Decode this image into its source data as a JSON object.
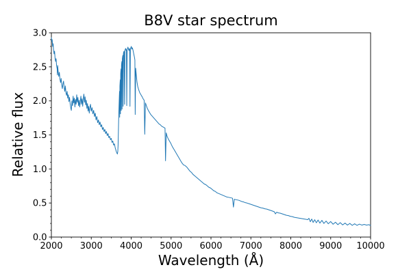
{
  "figure": {
    "title": "B8V star spectrum",
    "background": "#ffffff"
  },
  "chart_data": {
    "type": "line",
    "title": "B8V star spectrum",
    "xlabel": "Wavelength (Å)",
    "ylabel": "Relative flux",
    "xlim": [
      2000,
      10000
    ],
    "ylim": [
      0.0,
      3.0
    ],
    "x_ticks": [
      2000,
      3000,
      4000,
      5000,
      6000,
      7000,
      8000,
      9000,
      10000
    ],
    "y_ticks": [
      0.0,
      0.5,
      1.0,
      1.5,
      2.0,
      2.5,
      3.0
    ],
    "x_minor_tick_step": 250,
    "y_minor_tick_step": 0.1,
    "grid": false,
    "legend": "none",
    "line_color": "#1f77b4",
    "text_color": "#000000",
    "spine_color": "#1a1a1a",
    "series": [
      {
        "name": "B8V star spectrum",
        "points": [
          [
            2000,
            2.93
          ],
          [
            2010,
            2.87
          ],
          [
            2020,
            2.9
          ],
          [
            2032,
            2.8
          ],
          [
            2044,
            2.84
          ],
          [
            2056,
            2.74
          ],
          [
            2068,
            2.69
          ],
          [
            2080,
            2.73
          ],
          [
            2092,
            2.63
          ],
          [
            2105,
            2.58
          ],
          [
            2118,
            2.62
          ],
          [
            2130,
            2.52
          ],
          [
            2145,
            2.47
          ],
          [
            2152,
            2.38
          ],
          [
            2158,
            2.52
          ],
          [
            2170,
            2.43
          ],
          [
            2185,
            2.36
          ],
          [
            2200,
            2.42
          ],
          [
            2215,
            2.32
          ],
          [
            2230,
            2.27
          ],
          [
            2245,
            2.33
          ],
          [
            2260,
            2.23
          ],
          [
            2275,
            2.18
          ],
          [
            2290,
            2.25
          ],
          [
            2305,
            2.29
          ],
          [
            2320,
            2.2
          ],
          [
            2335,
            2.14
          ],
          [
            2350,
            2.22
          ],
          [
            2365,
            2.12
          ],
          [
            2380,
            2.08
          ],
          [
            2395,
            2.14
          ],
          [
            2410,
            2.04
          ],
          [
            2425,
            2.09
          ],
          [
            2440,
            1.99
          ],
          [
            2455,
            2.05
          ],
          [
            2470,
            1.96
          ],
          [
            2485,
            1.9
          ],
          [
            2500,
            1.86
          ],
          [
            2515,
            2.0
          ],
          [
            2530,
            1.93
          ],
          [
            2545,
            2.07
          ],
          [
            2560,
            1.97
          ],
          [
            2575,
            2.04
          ],
          [
            2590,
            1.91
          ],
          [
            2605,
            2.02
          ],
          [
            2620,
            1.95
          ],
          [
            2635,
            2.09
          ],
          [
            2650,
            1.98
          ],
          [
            2665,
            2.05
          ],
          [
            2680,
            1.93
          ],
          [
            2695,
            2.01
          ],
          [
            2710,
            1.91
          ],
          [
            2725,
            1.99
          ],
          [
            2740,
            2.07
          ],
          [
            2755,
            1.95
          ],
          [
            2770,
            2.03
          ],
          [
            2785,
            1.92
          ],
          [
            2800,
            2.04
          ],
          [
            2815,
            2.1
          ],
          [
            2830,
            1.98
          ],
          [
            2845,
            2.06
          ],
          [
            2860,
            1.94
          ],
          [
            2875,
            2.01
          ],
          [
            2890,
            1.89
          ],
          [
            2905,
            1.96
          ],
          [
            2920,
            1.85
          ],
          [
            2935,
            1.92
          ],
          [
            2950,
            1.82
          ],
          [
            2965,
            1.9
          ],
          [
            2980,
            1.95
          ],
          [
            3000,
            1.85
          ],
          [
            3020,
            1.9
          ],
          [
            3040,
            1.81
          ],
          [
            3060,
            1.86
          ],
          [
            3080,
            1.77
          ],
          [
            3100,
            1.82
          ],
          [
            3120,
            1.72
          ],
          [
            3140,
            1.77
          ],
          [
            3160,
            1.68
          ],
          [
            3180,
            1.72
          ],
          [
            3200,
            1.65
          ],
          [
            3220,
            1.69
          ],
          [
            3240,
            1.62
          ],
          [
            3260,
            1.65
          ],
          [
            3280,
            1.58
          ],
          [
            3300,
            1.61
          ],
          [
            3320,
            1.55
          ],
          [
            3340,
            1.58
          ],
          [
            3360,
            1.52
          ],
          [
            3380,
            1.55
          ],
          [
            3400,
            1.49
          ],
          [
            3420,
            1.52
          ],
          [
            3440,
            1.46
          ],
          [
            3460,
            1.48
          ],
          [
            3480,
            1.43
          ],
          [
            3500,
            1.45
          ],
          [
            3520,
            1.39
          ],
          [
            3540,
            1.41
          ],
          [
            3560,
            1.35
          ],
          [
            3580,
            1.37
          ],
          [
            3600,
            1.31
          ],
          [
            3615,
            1.28
          ],
          [
            3630,
            1.25
          ],
          [
            3645,
            1.23
          ],
          [
            3655,
            1.22
          ],
          [
            3665,
            1.26
          ],
          [
            3672,
            1.35
          ],
          [
            3680,
            1.56
          ],
          [
            3688,
            1.77
          ],
          [
            3696,
            1.93
          ],
          [
            3703,
            2.06
          ],
          [
            3708,
            2.14
          ],
          [
            3712,
            1.76
          ],
          [
            3717,
            2.22
          ],
          [
            3723,
            2.28
          ],
          [
            3727,
            2.31
          ],
          [
            3731,
            1.81
          ],
          [
            3737,
            2.4
          ],
          [
            3743,
            2.45
          ],
          [
            3747,
            2.47
          ],
          [
            3751,
            1.86
          ],
          [
            3757,
            2.52
          ],
          [
            3763,
            2.56
          ],
          [
            3768,
            2.58
          ],
          [
            3772,
            1.88
          ],
          [
            3779,
            2.62
          ],
          [
            3786,
            2.65
          ],
          [
            3793,
            2.67
          ],
          [
            3798,
            1.92
          ],
          [
            3806,
            2.7
          ],
          [
            3814,
            2.72
          ],
          [
            3823,
            2.73
          ],
          [
            3835,
            1.95
          ],
          [
            3844,
            2.74
          ],
          [
            3853,
            2.76
          ],
          [
            3863,
            2.77
          ],
          [
            3873,
            2.74
          ],
          [
            3881,
            2.75
          ],
          [
            3889,
            1.93
          ],
          [
            3899,
            2.76
          ],
          [
            3909,
            2.77
          ],
          [
            3919,
            2.79
          ],
          [
            3931,
            2.76
          ],
          [
            3943,
            2.74
          ],
          [
            3955,
            2.77
          ],
          [
            3963,
            2.75
          ],
          [
            3970,
            1.92
          ],
          [
            3980,
            2.76
          ],
          [
            3991,
            2.78
          ],
          [
            4003,
            2.8
          ],
          [
            4015,
            2.76
          ],
          [
            4027,
            2.78
          ],
          [
            4040,
            2.76
          ],
          [
            4054,
            2.72
          ],
          [
            4068,
            2.68
          ],
          [
            4082,
            2.64
          ],
          [
            4093,
            2.6
          ],
          [
            4101,
            1.8
          ],
          [
            4113,
            2.48
          ],
          [
            4128,
            2.38
          ],
          [
            4145,
            2.28
          ],
          [
            4165,
            2.21
          ],
          [
            4190,
            2.16
          ],
          [
            4215,
            2.12
          ],
          [
            4245,
            2.09
          ],
          [
            4275,
            2.06
          ],
          [
            4300,
            2.03
          ],
          [
            4325,
            2.01
          ],
          [
            4340,
            1.51
          ],
          [
            4358,
            1.97
          ],
          [
            4380,
            1.93
          ],
          [
            4405,
            1.89
          ],
          [
            4430,
            1.86
          ],
          [
            4460,
            1.83
          ],
          [
            4490,
            1.8
          ],
          [
            4520,
            1.78
          ],
          [
            4550,
            1.76
          ],
          [
            4580,
            1.74
          ],
          [
            4610,
            1.72
          ],
          [
            4640,
            1.7
          ],
          [
            4670,
            1.68
          ],
          [
            4700,
            1.66
          ],
          [
            4730,
            1.65
          ],
          [
            4760,
            1.63
          ],
          [
            4790,
            1.62
          ],
          [
            4820,
            1.61
          ],
          [
            4848,
            1.6
          ],
          [
            4861,
            1.12
          ],
          [
            4878,
            1.53
          ],
          [
            4900,
            1.48
          ],
          [
            4930,
            1.44
          ],
          [
            4960,
            1.41
          ],
          [
            4990,
            1.38
          ],
          [
            5030,
            1.33
          ],
          [
            5070,
            1.29
          ],
          [
            5110,
            1.25
          ],
          [
            5150,
            1.21
          ],
          [
            5190,
            1.17
          ],
          [
            5230,
            1.13
          ],
          [
            5270,
            1.09
          ],
          [
            5310,
            1.06
          ],
          [
            5350,
            1.05
          ],
          [
            5390,
            1.03
          ],
          [
            5430,
            1.0
          ],
          [
            5470,
            0.97
          ],
          [
            5510,
            0.95
          ],
          [
            5550,
            0.92
          ],
          [
            5590,
            0.9
          ],
          [
            5630,
            0.88
          ],
          [
            5670,
            0.86
          ],
          [
            5710,
            0.84
          ],
          [
            5750,
            0.82
          ],
          [
            5790,
            0.8
          ],
          [
            5830,
            0.78
          ],
          [
            5870,
            0.77
          ],
          [
            5910,
            0.75
          ],
          [
            5950,
            0.73
          ],
          [
            5990,
            0.72
          ],
          [
            6030,
            0.7
          ],
          [
            6070,
            0.68
          ],
          [
            6110,
            0.67
          ],
          [
            6150,
            0.65
          ],
          [
            6190,
            0.64
          ],
          [
            6230,
            0.63
          ],
          [
            6270,
            0.62
          ],
          [
            6310,
            0.61
          ],
          [
            6350,
            0.6
          ],
          [
            6390,
            0.59
          ],
          [
            6430,
            0.585
          ],
          [
            6470,
            0.58
          ],
          [
            6510,
            0.575
          ],
          [
            6540,
            0.57
          ],
          [
            6563,
            0.44
          ],
          [
            6585,
            0.555
          ],
          [
            6620,
            0.55
          ],
          [
            6660,
            0.545
          ],
          [
            6700,
            0.54
          ],
          [
            6740,
            0.53
          ],
          [
            6780,
            0.52
          ],
          [
            6820,
            0.515
          ],
          [
            6860,
            0.505
          ],
          [
            6900,
            0.5
          ],
          [
            6950,
            0.49
          ],
          [
            7000,
            0.48
          ],
          [
            7050,
            0.47
          ],
          [
            7100,
            0.46
          ],
          [
            7150,
            0.45
          ],
          [
            7200,
            0.44
          ],
          [
            7250,
            0.43
          ],
          [
            7300,
            0.425
          ],
          [
            7350,
            0.415
          ],
          [
            7400,
            0.41
          ],
          [
            7450,
            0.4
          ],
          [
            7500,
            0.39
          ],
          [
            7550,
            0.38
          ],
          [
            7590,
            0.37
          ],
          [
            7615,
            0.34
          ],
          [
            7645,
            0.365
          ],
          [
            7690,
            0.355
          ],
          [
            7740,
            0.35
          ],
          [
            7790,
            0.34
          ],
          [
            7840,
            0.33
          ],
          [
            7890,
            0.32
          ],
          [
            7940,
            0.315
          ],
          [
            7990,
            0.305
          ],
          [
            8040,
            0.3
          ],
          [
            8090,
            0.29
          ],
          [
            8140,
            0.285
          ],
          [
            8190,
            0.28
          ],
          [
            8240,
            0.275
          ],
          [
            8290,
            0.27
          ],
          [
            8340,
            0.265
          ],
          [
            8390,
            0.26
          ],
          [
            8420,
            0.255
          ],
          [
            8455,
            0.275
          ],
          [
            8490,
            0.225
          ],
          [
            8525,
            0.265
          ],
          [
            8560,
            0.215
          ],
          [
            8600,
            0.255
          ],
          [
            8640,
            0.21
          ],
          [
            8685,
            0.25
          ],
          [
            8730,
            0.205
          ],
          [
            8780,
            0.245
          ],
          [
            8830,
            0.2
          ],
          [
            8885,
            0.235
          ],
          [
            8940,
            0.195
          ],
          [
            9000,
            0.228
          ],
          [
            9060,
            0.188
          ],
          [
            9120,
            0.218
          ],
          [
            9180,
            0.182
          ],
          [
            9240,
            0.212
          ],
          [
            9300,
            0.178
          ],
          [
            9360,
            0.205
          ],
          [
            9420,
            0.176
          ],
          [
            9480,
            0.2
          ],
          [
            9540,
            0.172
          ],
          [
            9600,
            0.195
          ],
          [
            9660,
            0.172
          ],
          [
            9720,
            0.19
          ],
          [
            9780,
            0.176
          ],
          [
            9840,
            0.186
          ],
          [
            9900,
            0.176
          ],
          [
            9950,
            0.182
          ],
          [
            10000,
            0.172
          ]
        ]
      }
    ]
  }
}
